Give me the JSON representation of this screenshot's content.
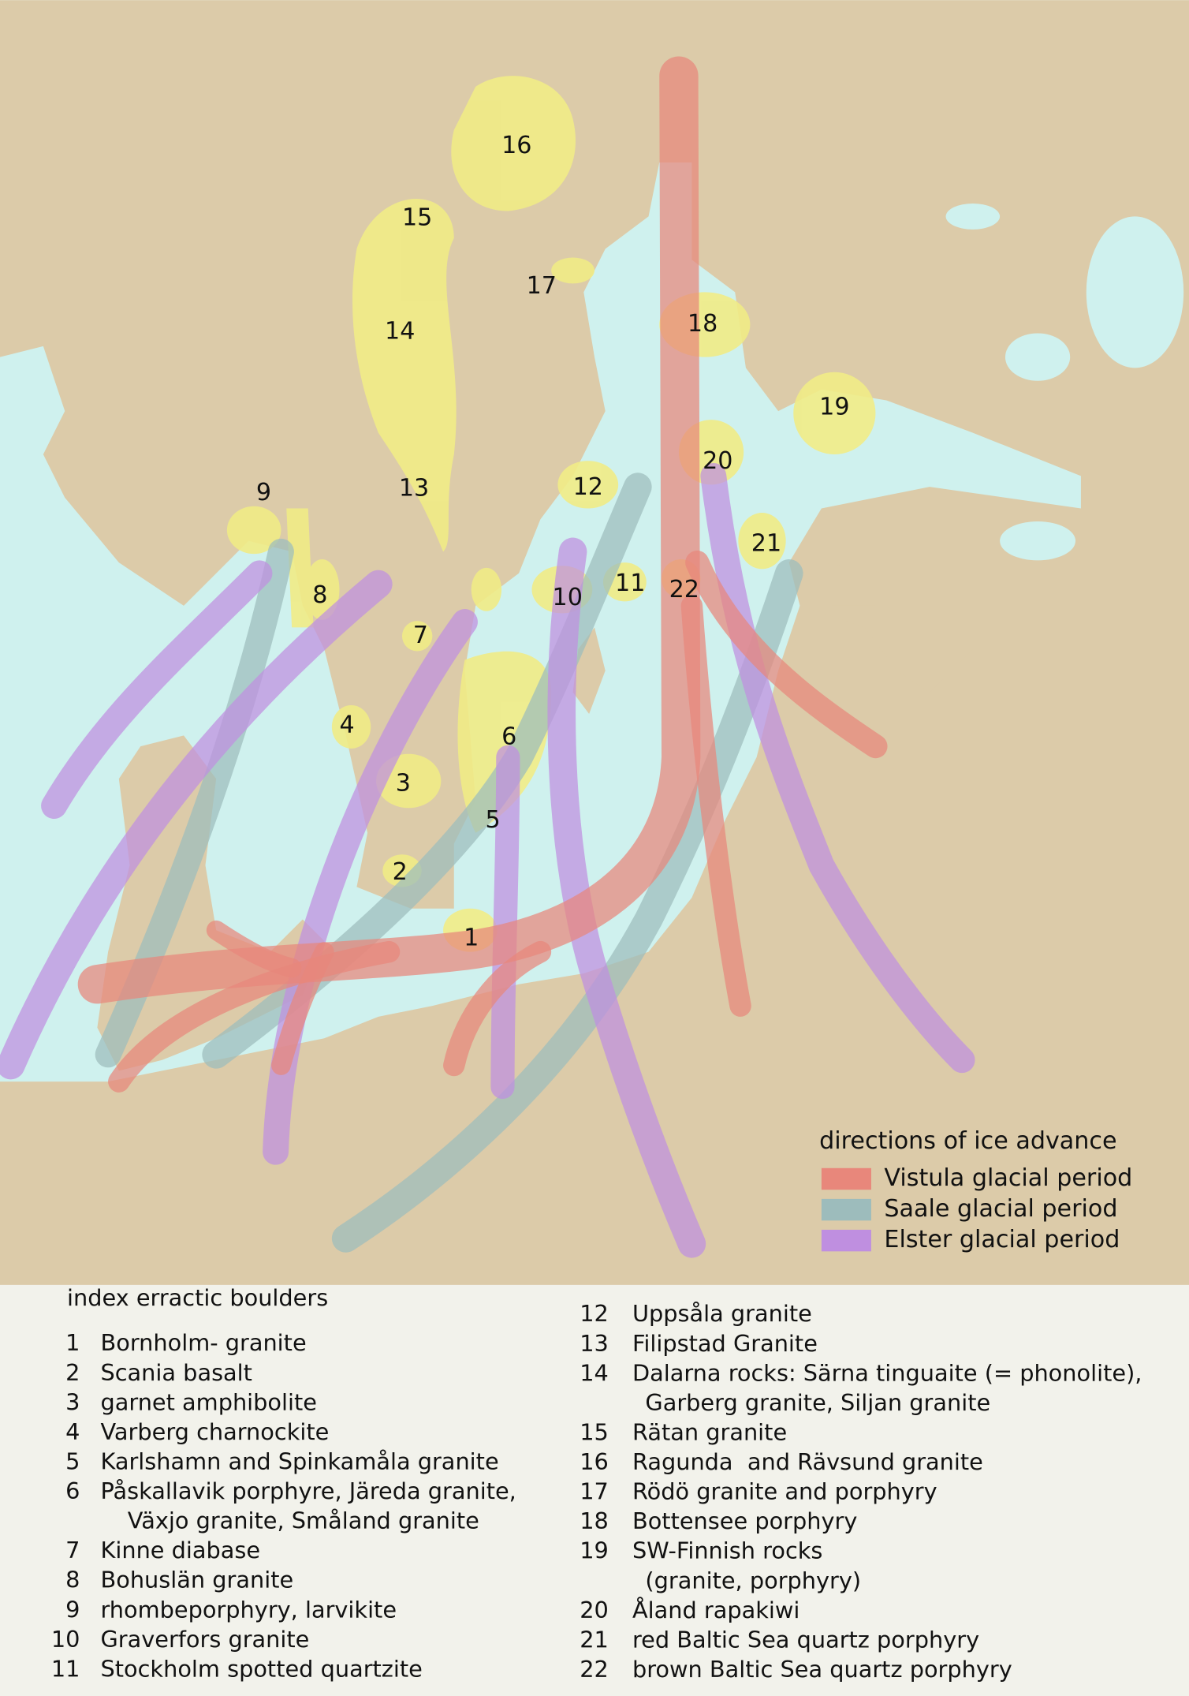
{
  "legend": {
    "title": "directions of ice advance",
    "items": [
      {
        "label": "Vistula glacial period",
        "color": "#e8877b"
      },
      {
        "label": "Saale glacial period",
        "color": "#9dbcbc"
      },
      {
        "label": "Elster glacial period",
        "color": "#bf8fe0"
      }
    ]
  },
  "index": {
    "title": "index erractic boulders",
    "items": [
      {
        "number": "1",
        "lines": [
          "Bornholm- granite"
        ]
      },
      {
        "number": "2",
        "lines": [
          "Scania basalt"
        ]
      },
      {
        "number": "3",
        "lines": [
          "garnet amphibolite"
        ]
      },
      {
        "number": "4",
        "lines": [
          "Varberg charnockite"
        ]
      },
      {
        "number": "5",
        "lines": [
          "Karlshamn and Spinkamåla granite"
        ]
      },
      {
        "number": "6",
        "lines": [
          "Påskallavik porphyre, Järeda granite,",
          "Växjo granite, Småland granite"
        ]
      },
      {
        "number": "7",
        "lines": [
          "Kinne diabase"
        ]
      },
      {
        "number": "8",
        "lines": [
          "Bohuslän granite"
        ]
      },
      {
        "number": "9",
        "lines": [
          "rhombeporphyry, larvikite"
        ]
      },
      {
        "number": "10",
        "lines": [
          "Graverfors granite"
        ]
      },
      {
        "number": "11",
        "lines": [
          "Stockholm spotted quartzite"
        ]
      },
      {
        "number": "12",
        "lines": [
          "Uppsåla granite"
        ]
      },
      {
        "number": "13",
        "lines": [
          "Filipstad Granite"
        ]
      },
      {
        "number": "14",
        "lines": [
          "Dalarna rocks: Särna tinguaite (= phonolite),",
          "Garberg granite, Siljan granite"
        ]
      },
      {
        "number": "15",
        "lines": [
          "Rätan granite"
        ]
      },
      {
        "number": "16",
        "lines": [
          "Ragunda  and Rävsund granite"
        ]
      },
      {
        "number": "17",
        "lines": [
          "Rödö granite and porphyry"
        ]
      },
      {
        "number": "18",
        "lines": [
          "Bottensee porphyry"
        ]
      },
      {
        "number": "19",
        "lines": [
          "SW-Finnish rocks",
          "(granite, porphyry)"
        ]
      },
      {
        "number": "20",
        "lines": [
          "Åland rapakiwi"
        ]
      },
      {
        "number": "21",
        "lines": [
          "red Baltic Sea quartz porphyry"
        ]
      },
      {
        "number": "22",
        "lines": [
          "brown Baltic Sea quartz porphyry"
        ]
      }
    ]
  }
}
